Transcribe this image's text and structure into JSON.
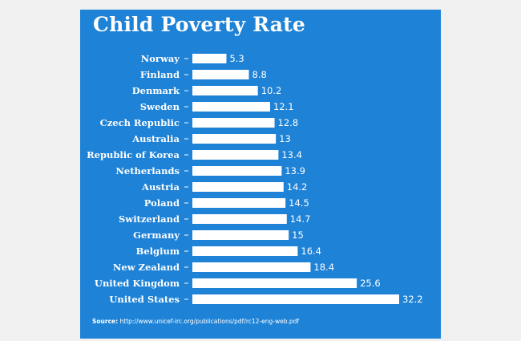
{
  "chart_data": {
    "type": "bar",
    "orientation": "horizontal",
    "title": "Child Poverty Rate",
    "categories": [
      "Norway",
      "Finland",
      "Denmark",
      "Sweden",
      "Czech Republic",
      "Australia",
      "Republic of Korea",
      "Netherlands",
      "Austria",
      "Poland",
      "Switzerland",
      "Germany",
      "Belgium",
      "New Zealand",
      "United Kingdom",
      "United States"
    ],
    "values": [
      5.3,
      8.8,
      10.2,
      12.1,
      12.8,
      13,
      13.4,
      13.9,
      14.2,
      14.5,
      14.7,
      15,
      16.4,
      18.4,
      25.6,
      32.2
    ],
    "value_labels": [
      "5.3",
      "8.8",
      "10.2",
      "12.1",
      "12.8",
      "13",
      "13.4",
      "13.9",
      "14.2",
      "14.5",
      "14.7",
      "15",
      "16.4",
      "18.4",
      "25.6",
      "32.2"
    ],
    "xlim": [
      0,
      32.2
    ],
    "grid": false,
    "legend": "none",
    "colors": {
      "background": "#1e82d6",
      "bar": "#ffffff",
      "text": "#ffffff"
    }
  },
  "source": {
    "label": "Source:",
    "text": "http://www.unicef-irc.org/publications/pdf/rc12-eng-web.pdf"
  }
}
